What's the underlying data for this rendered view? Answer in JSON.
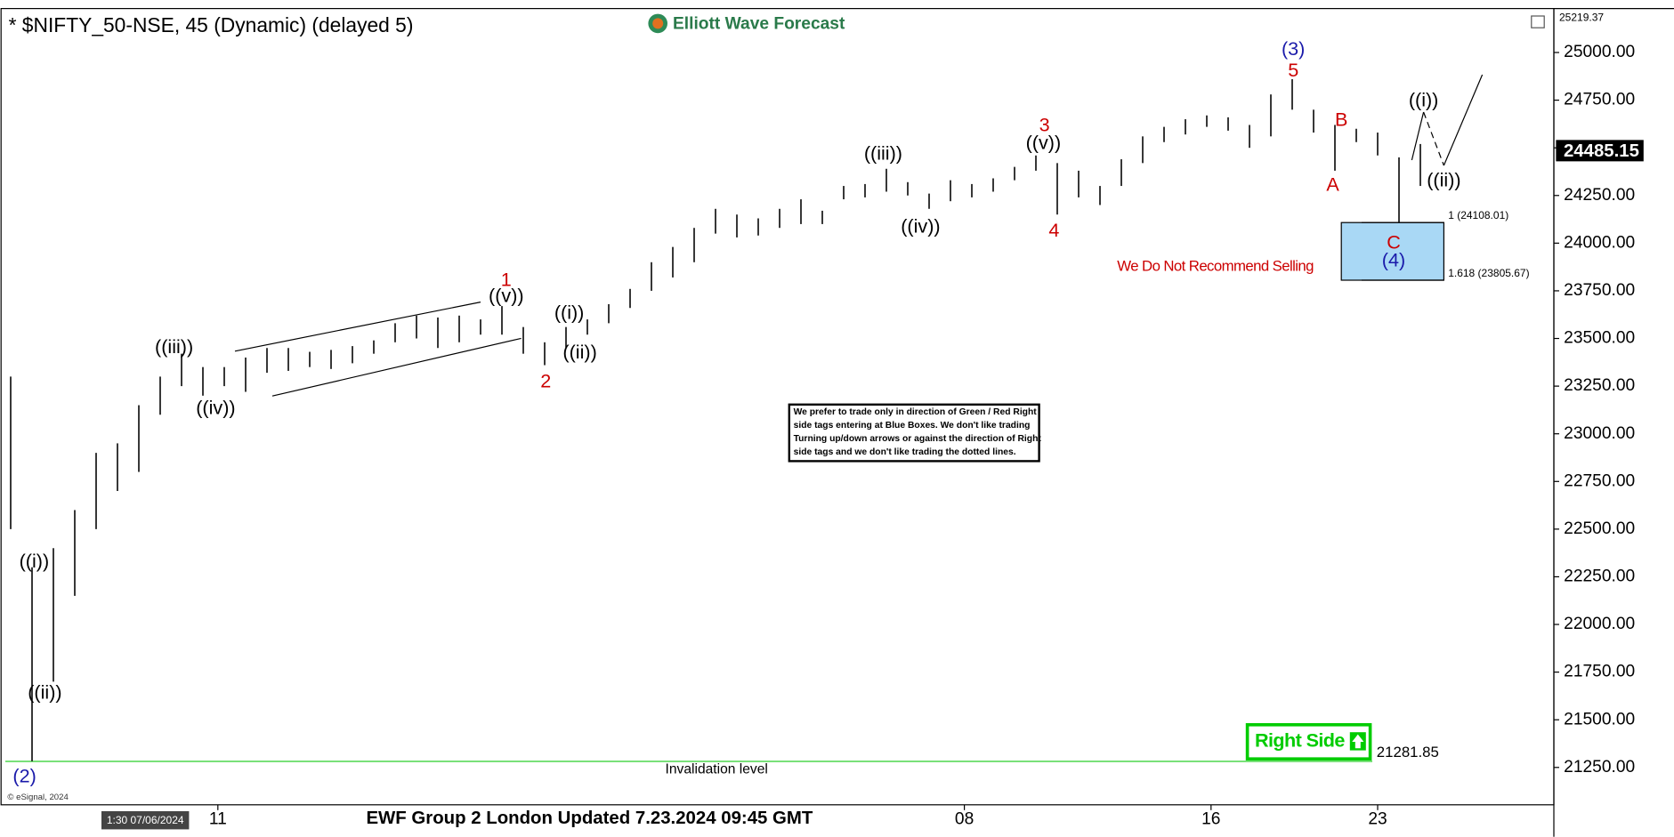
{
  "chart_data": {
    "type": "ohlc",
    "title": "* $NIFTY_50-NSE, 45 (Dynamic) (delayed 5)",
    "brand": "Elliott Wave Forecast",
    "footer": "EWF Group 2 London Updated 7.23.2024 09:45 GMT",
    "cursor_time": "1:30 07/06/2024",
    "copyright": "© eSignal, 2024",
    "color": "#000000",
    "high": [
      23300,
      22300,
      22400,
      22600,
      22900,
      22950,
      23150,
      23300,
      23420,
      23350,
      23350,
      23400,
      23450,
      23450,
      23430,
      23440,
      23460,
      23490,
      23580,
      23620,
      23610,
      23620,
      23600,
      23670,
      23560,
      23480,
      23560,
      23600,
      23680,
      23760,
      23900,
      23980,
      24080,
      24180,
      24150,
      24130,
      24180,
      24230,
      24170,
      24300,
      24310,
      24390,
      24320,
      24260,
      24330,
      24310,
      24340,
      24400,
      24460,
      24420,
      24380,
      24300,
      24440,
      24560,
      24610,
      24650,
      24670,
      24660,
      24620,
      24780,
      24860,
      24700,
      24620,
      24600,
      24580,
      24450,
      24520
    ],
    "low": [
      22500,
      21282,
      21700,
      22150,
      22500,
      22700,
      22800,
      23100,
      23250,
      23200,
      23250,
      23220,
      23320,
      23330,
      23350,
      23340,
      23370,
      23420,
      23480,
      23500,
      23450,
      23480,
      23520,
      23520,
      23420,
      23360,
      23450,
      23520,
      23580,
      23660,
      23750,
      23820,
      23900,
      24050,
      24030,
      24040,
      24080,
      24100,
      24100,
      24230,
      24240,
      24270,
      24250,
      24180,
      24220,
      24240,
      24270,
      24330,
      24380,
      24150,
      24240,
      24200,
      24300,
      24420,
      24530,
      24570,
      24610,
      24590,
      24500,
      24560,
      24700,
      24580,
      24380,
      24530,
      24460,
      24108,
      24300
    ],
    "ylim": [
      21054,
      25219.37
    ],
    "yticks": [
      {
        "value": 21250,
        "label": "21250.00"
      },
      {
        "value": 21500,
        "label": "21500.00"
      },
      {
        "value": 21750,
        "label": "21750.00"
      },
      {
        "value": 22000,
        "label": "22000.00"
      },
      {
        "value": 22250,
        "label": "22250.00"
      },
      {
        "value": 22500,
        "label": "22500.00"
      },
      {
        "value": 22750,
        "label": "22750.00"
      },
      {
        "value": 23000,
        "label": "23000.00"
      },
      {
        "value": 23250,
        "label": "23250.00"
      },
      {
        "value": 23500,
        "label": "23500.00"
      },
      {
        "value": 23750,
        "label": "23750.00"
      },
      {
        "value": 24000,
        "label": "24000.00"
      },
      {
        "value": 24250,
        "label": "24250.00"
      },
      {
        "value": 24500,
        "label": "24500.00"
      },
      {
        "value": 24750,
        "label": "24750.00"
      },
      {
        "value": 25000,
        "label": "25000.00"
      }
    ],
    "xlim": [
      -0.5,
      72.25
    ],
    "xticks": [
      {
        "value": 9.7,
        "label": "11"
      },
      {
        "value": 44.65,
        "label": "08"
      },
      {
        "value": 56.2,
        "label": "16"
      },
      {
        "value": 64,
        "label": "23"
      }
    ],
    "last_price": 24485.15,
    "annotations": [
      {
        "text": "((i))",
        "color": "#000000"
      },
      {
        "text": "((ii))",
        "color": "#000000"
      },
      {
        "text": "(2)",
        "color": "#1a1aaa"
      },
      {
        "text": "((iii))",
        "color": "#000000"
      },
      {
        "text": "((iv))",
        "color": "#000000"
      },
      {
        "text": "1",
        "color": "#cc0000"
      },
      {
        "text": "((v))",
        "color": "#000000"
      },
      {
        "text": "2",
        "color": "#cc0000"
      },
      {
        "text": "((i))",
        "color": "#000000"
      },
      {
        "text": "((ii))",
        "color": "#000000"
      },
      {
        "text": "((iii))",
        "color": "#000000"
      },
      {
        "text": "((iv))",
        "color": "#000000"
      },
      {
        "text": "3",
        "color": "#cc0000"
      },
      {
        "text": "((v))",
        "color": "#000000"
      },
      {
        "text": "4",
        "color": "#cc0000"
      },
      {
        "text": "(3)",
        "color": "#1a1aaa"
      },
      {
        "text": "5",
        "color": "#cc0000"
      },
      {
        "text": "B",
        "color": "#cc0000"
      },
      {
        "text": "A",
        "color": "#cc0000"
      },
      {
        "text": "C",
        "color": "#cc0000"
      },
      {
        "text": "(4)",
        "color": "#1a1aaa"
      },
      {
        "text": "((i))",
        "color": "#000000"
      },
      {
        "text": "((ii))",
        "color": "#000000"
      }
    ],
    "warning": "We Do Not Recommend Selling",
    "note": [
      "We prefer to trade only in direction of Green / Red Right",
      "side tags entering at Blue Boxes. We don't like trading",
      "Turning up/down arrows or against the direction of Right",
      "side tags and we don't like trading the dotted lines."
    ],
    "target_box": {
      "levels": [
        24108.01,
        23805.67
      ],
      "labels": [
        "1 (24108.01)",
        "1.618 (23805.67)"
      ]
    },
    "invalidation": {
      "value": 21281.85,
      "label": "Invalidation level"
    },
    "badge": "Right Side"
  }
}
